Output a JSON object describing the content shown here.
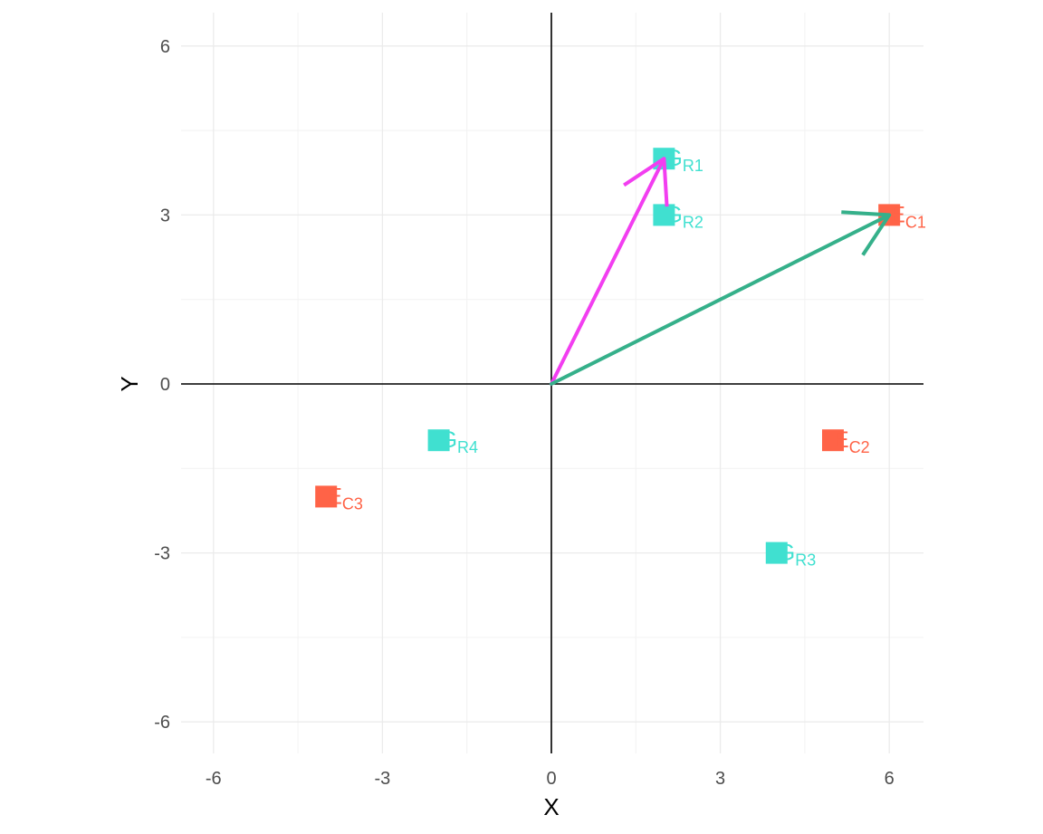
{
  "chart_data": {
    "type": "scatter",
    "xlabel": "X",
    "ylabel": "Y",
    "xlim": [
      -6.6,
      6.6
    ],
    "ylim": [
      -6.6,
      6.6
    ],
    "x_ticks": [
      -6,
      -3,
      0,
      3,
      6
    ],
    "y_ticks": [
      -6,
      -3,
      0,
      3,
      6
    ],
    "x_tick_labels": [
      "-6",
      "-3",
      "0",
      "3",
      "6"
    ],
    "y_tick_labels": [
      "-6",
      "-3",
      "0",
      "3",
      "6"
    ],
    "grid": true,
    "reference_lines": [
      "x = 0",
      "y = 0"
    ],
    "colors": {
      "G": "#40e0d0",
      "E": "#ff6347",
      "arrow_g": "#f23ef0",
      "arrow_e": "#35b08a"
    },
    "points": [
      {
        "main": "G",
        "sub": "R1",
        "x": 2,
        "y": 4,
        "group": "G"
      },
      {
        "main": "G",
        "sub": "R2",
        "x": 2,
        "y": 3,
        "group": "G"
      },
      {
        "main": "G",
        "sub": "R3",
        "x": 4,
        "y": -3,
        "group": "G"
      },
      {
        "main": "G",
        "sub": "R4",
        "x": -2,
        "y": -1,
        "group": "G"
      },
      {
        "main": "E",
        "sub": "C1",
        "x": 6,
        "y": 3,
        "group": "E"
      },
      {
        "main": "E",
        "sub": "C2",
        "x": 5,
        "y": -1,
        "group": "E"
      },
      {
        "main": "E",
        "sub": "C3",
        "x": -4,
        "y": -2,
        "group": "E"
      }
    ],
    "arrows": [
      {
        "from": [
          0,
          0
        ],
        "to": [
          2,
          4
        ],
        "color": "arrow_g"
      },
      {
        "from": [
          0,
          0
        ],
        "to": [
          6,
          3
        ],
        "color": "arrow_e"
      }
    ]
  }
}
